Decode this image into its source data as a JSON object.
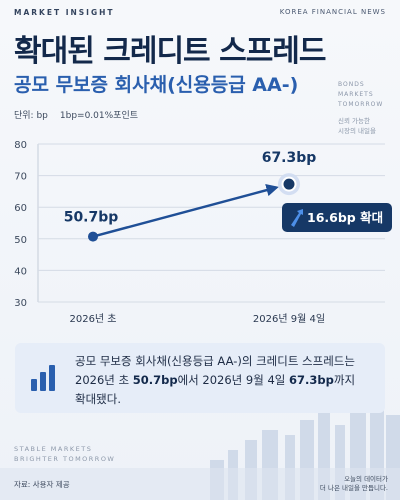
{
  "header": {
    "kicker": "MARKET INSIGHT",
    "brand": "KOREA FINANCIAL NEWS"
  },
  "side_note": {
    "lines": [
      "BONDS",
      "MARKETS",
      "TOMORROW"
    ],
    "tagline": [
      "신뢰 가능한",
      "시장의 내일을"
    ]
  },
  "chart_data": {
    "type": "line",
    "title": "확대된 크레디트 스프레드",
    "subtitle": "공모 무보증 회사채(신용등급 AA-)",
    "unit_note": "단위: bp",
    "unit_definition": "1bp=0.01%포인트",
    "categories": [
      "2026년 초",
      "2026년 9월 4일"
    ],
    "values": [
      50.7,
      67.3
    ],
    "value_labels": [
      "50.7bp",
      "67.3bp"
    ],
    "color": "#1f4f96",
    "ylim": [
      30,
      80
    ],
    "yticks": [
      30,
      40,
      50,
      60,
      70,
      80
    ],
    "grid": true,
    "annotation": "16.6bp 확대"
  },
  "summary": {
    "lines": [
      [
        {
          "text": "공모 무보증 회사채(신용등급 AA-)의 크레디트 스프레드는",
          "bold": false
        }
      ],
      [
        {
          "text": "2026년 초 ",
          "bold": false
        },
        {
          "text": "50.7bp",
          "bold": true
        },
        {
          "text": "에서 2026년 9월 4일 ",
          "bold": false
        },
        {
          "text": "67.3bp",
          "bold": true
        },
        {
          "text": "까지",
          "bold": false
        }
      ],
      [
        {
          "text": "확대됐다.",
          "bold": false
        }
      ]
    ]
  },
  "footer": {
    "motto": [
      "STABLE MARKETS",
      "BRIGHTER TOMORROW"
    ],
    "source": "자료: 사용자 제공",
    "tagline": [
      "오늘의 데이터가",
      "더 나은 내일을 만듭니다."
    ]
  }
}
